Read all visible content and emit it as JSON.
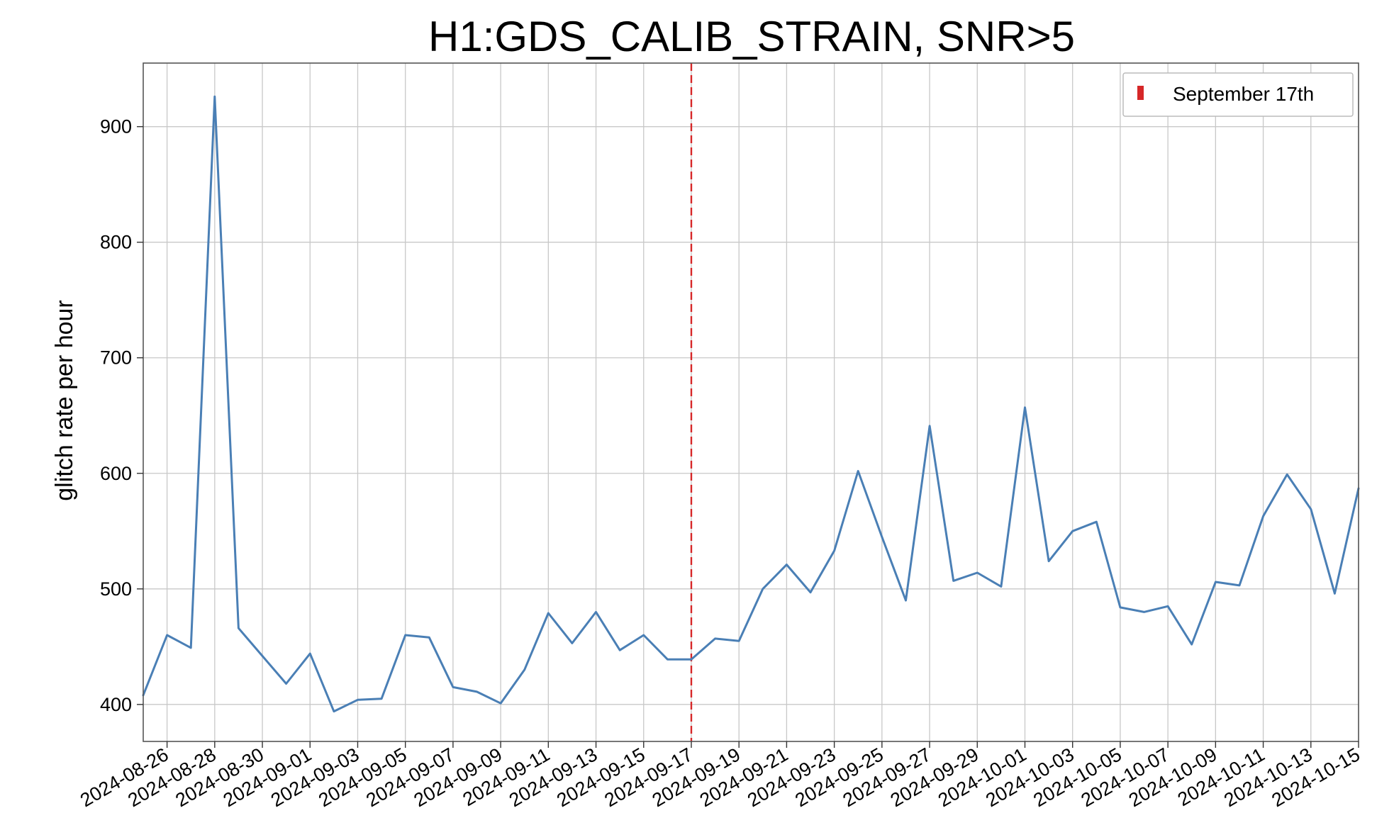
{
  "chart_data": {
    "type": "line",
    "title": "H1:GDS_CALIB_STRAIN, SNR>5",
    "xlabel": "",
    "ylabel": "glitch rate per hour",
    "xlim": [
      "2024-08-25",
      "2024-10-15"
    ],
    "ylim": [
      368,
      955
    ],
    "yticks": [
      400,
      500,
      600,
      700,
      800,
      900
    ],
    "xticks": [
      "2024-08-26",
      "2024-08-28",
      "2024-08-30",
      "2024-09-01",
      "2024-09-03",
      "2024-09-05",
      "2024-09-07",
      "2024-09-09",
      "2024-09-11",
      "2024-09-13",
      "2024-09-15",
      "2024-09-17",
      "2024-09-19",
      "2024-09-21",
      "2024-09-23",
      "2024-09-25",
      "2024-09-27",
      "2024-09-29",
      "2024-10-01",
      "2024-10-03",
      "2024-10-05",
      "2024-10-07",
      "2024-10-09",
      "2024-10-11",
      "2024-10-13",
      "2024-10-15"
    ],
    "grid": true,
    "legend_position": "top-right",
    "series": [
      {
        "color": "#4a7fb5",
        "x": [
          "2024-08-25",
          "2024-08-26",
          "2024-08-27",
          "2024-08-28",
          "2024-08-29",
          "2024-08-30",
          "2024-08-31",
          "2024-09-01",
          "2024-09-02",
          "2024-09-03",
          "2024-09-04",
          "2024-09-05",
          "2024-09-06",
          "2024-09-07",
          "2024-09-08",
          "2024-09-09",
          "2024-09-10",
          "2024-09-11",
          "2024-09-12",
          "2024-09-13",
          "2024-09-14",
          "2024-09-15",
          "2024-09-16",
          "2024-09-17",
          "2024-09-18",
          "2024-09-19",
          "2024-09-20",
          "2024-09-21",
          "2024-09-22",
          "2024-09-23",
          "2024-09-24",
          "2024-09-25",
          "2024-09-26",
          "2024-09-27",
          "2024-09-28",
          "2024-09-29",
          "2024-09-30",
          "2024-10-01",
          "2024-10-02",
          "2024-10-03",
          "2024-10-04",
          "2024-10-05",
          "2024-10-06",
          "2024-10-07",
          "2024-10-08",
          "2024-10-09",
          "2024-10-10",
          "2024-10-11",
          "2024-10-12",
          "2024-10-13",
          "2024-10-14",
          "2024-10-15"
        ],
        "values": [
          408,
          460,
          449,
          926,
          466,
          442,
          418,
          444,
          394,
          404,
          405,
          460,
          458,
          415,
          411,
          401,
          430,
          479,
          453,
          480,
          447,
          460,
          439,
          439,
          457,
          455,
          500,
          521,
          497,
          533,
          602,
          545,
          490,
          641,
          507,
          514,
          502,
          657,
          524,
          550,
          558,
          484,
          480,
          485,
          452,
          506,
          503,
          563,
          599,
          569,
          496,
          587
        ]
      }
    ],
    "annotations": [
      {
        "type": "vline",
        "x": "2024-09-17",
        "color": "#d62728",
        "style": "dashed",
        "label": "September 17th"
      }
    ]
  }
}
